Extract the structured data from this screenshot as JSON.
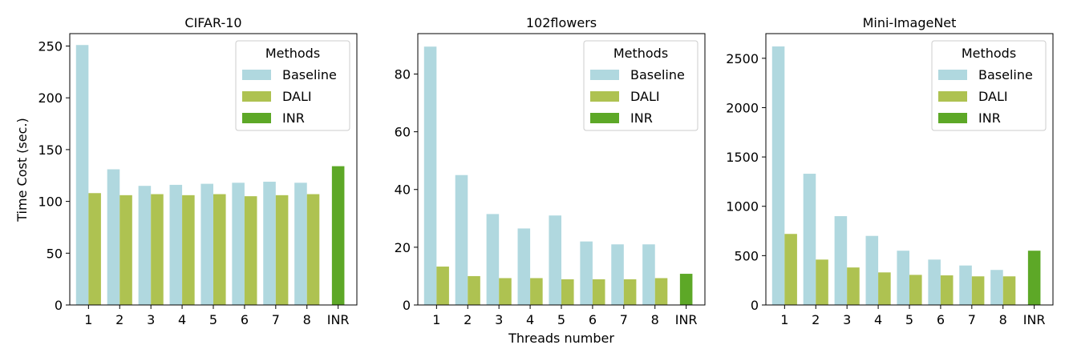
{
  "figure": {
    "xlabel": "Threads number",
    "ylabel": "Time Cost (sec.)",
    "legend_title": "Methods"
  },
  "colors": {
    "Baseline": "#b0d8df",
    "DALI": "#aec251",
    "INR": "#5da827"
  },
  "chart_data": [
    {
      "type": "bar",
      "title": "CIFAR-10",
      "categories": [
        "1",
        "2",
        "3",
        "4",
        "5",
        "6",
        "7",
        "8",
        "INR"
      ],
      "ylim": [
        0,
        262
      ],
      "yticks": [
        0,
        50,
        100,
        150,
        200,
        250
      ],
      "legend": "top-right",
      "series": [
        {
          "name": "Baseline",
          "values": [
            251,
            131,
            115,
            116,
            117,
            118,
            119,
            118,
            null
          ]
        },
        {
          "name": "DALI",
          "values": [
            108,
            106,
            107,
            106,
            107,
            105,
            106,
            107,
            null
          ]
        },
        {
          "name": "INR",
          "values": [
            null,
            null,
            null,
            null,
            null,
            null,
            null,
            null,
            134
          ]
        }
      ]
    },
    {
      "type": "bar",
      "title": "102flowers",
      "categories": [
        "1",
        "2",
        "3",
        "4",
        "5",
        "6",
        "7",
        "8",
        "INR"
      ],
      "ylim": [
        0,
        94
      ],
      "yticks": [
        0,
        20,
        40,
        60,
        80
      ],
      "legend": "top-right",
      "series": [
        {
          "name": "Baseline",
          "values": [
            89.5,
            45,
            31.5,
            26.5,
            31,
            22,
            21,
            21,
            null
          ]
        },
        {
          "name": "DALI",
          "values": [
            13.3,
            10,
            9.3,
            9.3,
            8.9,
            8.9,
            8.9,
            9.3,
            null
          ]
        },
        {
          "name": "INR",
          "values": [
            null,
            null,
            null,
            null,
            null,
            null,
            null,
            null,
            10.8
          ]
        }
      ]
    },
    {
      "type": "bar",
      "title": "Mini-ImageNet",
      "categories": [
        "1",
        "2",
        "3",
        "4",
        "5",
        "6",
        "7",
        "8",
        "INR"
      ],
      "ylim": [
        0,
        2750
      ],
      "yticks": [
        0,
        500,
        1000,
        1500,
        2000,
        2500
      ],
      "legend": "top-right",
      "series": [
        {
          "name": "Baseline",
          "values": [
            2620,
            1330,
            900,
            700,
            550,
            460,
            400,
            355,
            null
          ]
        },
        {
          "name": "DALI",
          "values": [
            720,
            460,
            380,
            330,
            305,
            300,
            290,
            290,
            null
          ]
        },
        {
          "name": "INR",
          "values": [
            null,
            null,
            null,
            null,
            null,
            null,
            null,
            null,
            550
          ]
        }
      ]
    }
  ]
}
